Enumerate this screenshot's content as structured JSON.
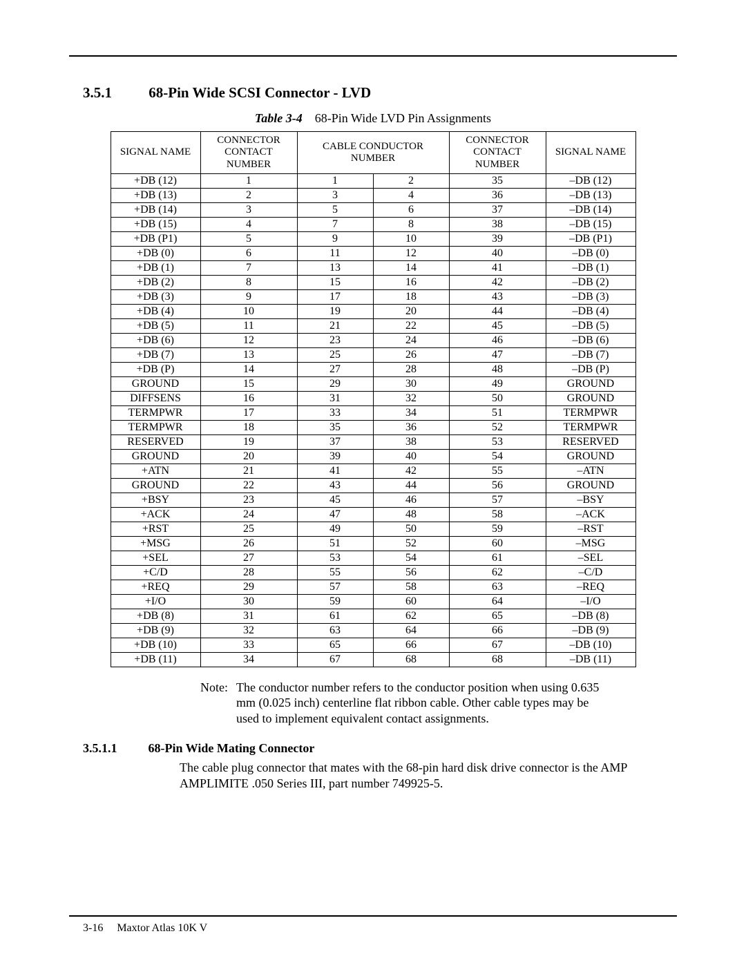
{
  "section": {
    "number": "3.5.1",
    "title": "68‑Pin Wide SCSI Connector ‑ LVD"
  },
  "table": {
    "label": "Table 3‑4",
    "caption": "68‑Pin Wide LVD Pin Assignments",
    "columns": [
      "SIGNAL NAME",
      "CONNECTOR CONTACT NUMBER",
      "CABLE CONDUCTOR NUMBER",
      "CONNECTOR CONTACT NUMBER",
      "SIGNAL NAME"
    ],
    "rows": [
      [
        "+DB (12)",
        "1",
        "1",
        "2",
        "35",
        "–DB (12)"
      ],
      [
        "+DB (13)",
        "2",
        "3",
        "4",
        "36",
        "–DB (13)"
      ],
      [
        "+DB (14)",
        "3",
        "5",
        "6",
        "37",
        "–DB (14)"
      ],
      [
        "+DB (15)",
        "4",
        "7",
        "8",
        "38",
        "–DB (15)"
      ],
      [
        "+DB (P1)",
        "5",
        "9",
        "10",
        "39",
        "–DB (P1)"
      ],
      [
        "+DB (0)",
        "6",
        "11",
        "12",
        "40",
        "–DB (0)"
      ],
      [
        "+DB (1)",
        "7",
        "13",
        "14",
        "41",
        "–DB (1)"
      ],
      [
        "+DB (2)",
        "8",
        "15",
        "16",
        "42",
        "–DB (2)"
      ],
      [
        "+DB (3)",
        "9",
        "17",
        "18",
        "43",
        "–DB (3)"
      ],
      [
        "+DB (4)",
        "10",
        "19",
        "20",
        "44",
        "–DB (4)"
      ],
      [
        "+DB (5)",
        "11",
        "21",
        "22",
        "45",
        "–DB (5)"
      ],
      [
        "+DB (6)",
        "12",
        "23",
        "24",
        "46",
        "–DB (6)"
      ],
      [
        "+DB (7)",
        "13",
        "25",
        "26",
        "47",
        "–DB (7)"
      ],
      [
        "+DB (P)",
        "14",
        "27",
        "28",
        "48",
        "–DB (P)"
      ],
      [
        "GROUND",
        "15",
        "29",
        "30",
        "49",
        "GROUND"
      ],
      [
        "DIFFSENS",
        "16",
        "31",
        "32",
        "50",
        "GROUND"
      ],
      [
        "TERMPWR",
        "17",
        "33",
        "34",
        "51",
        "TERMPWR"
      ],
      [
        "TERMPWR",
        "18",
        "35",
        "36",
        "52",
        "TERMPWR"
      ],
      [
        "RESERVED",
        "19",
        "37",
        "38",
        "53",
        "RESERVED"
      ],
      [
        "GROUND",
        "20",
        "39",
        "40",
        "54",
        "GROUND"
      ],
      [
        "+ATN",
        "21",
        "41",
        "42",
        "55",
        "–ATN"
      ],
      [
        "GROUND",
        "22",
        "43",
        "44",
        "56",
        "GROUND"
      ],
      [
        "+BSY",
        "23",
        "45",
        "46",
        "57",
        "–BSY"
      ],
      [
        "+ACK",
        "24",
        "47",
        "48",
        "58",
        "–ACK"
      ],
      [
        "+RST",
        "25",
        "49",
        "50",
        "59",
        "–RST"
      ],
      [
        "+MSG",
        "26",
        "51",
        "52",
        "60",
        "–MSG"
      ],
      [
        "+SEL",
        "27",
        "53",
        "54",
        "61",
        "–SEL"
      ],
      [
        "+C/D",
        "28",
        "55",
        "56",
        "62",
        "–C/D"
      ],
      [
        "+REQ",
        "29",
        "57",
        "58",
        "63",
        "–REQ"
      ],
      [
        "+I/O",
        "30",
        "59",
        "60",
        "64",
        "–I/O"
      ],
      [
        "+DB (8)",
        "31",
        "61",
        "62",
        "65",
        "–DB (8)"
      ],
      [
        "+DB (9)",
        "32",
        "63",
        "64",
        "66",
        "–DB (9)"
      ],
      [
        "+DB (10)",
        "33",
        "65",
        "66",
        "67",
        "–DB (10)"
      ],
      [
        "+DB (11)",
        "34",
        "67",
        "68",
        "68",
        "–DB (11)"
      ]
    ]
  },
  "note": {
    "label": "Note:",
    "text": "The conductor number refers to the conductor position when using 0.635 mm (0.025 inch) centerline flat ribbon cable. Other cable types may be used to implement equivalent contact assignments."
  },
  "subsection": {
    "number": "3.5.1.1",
    "title": "68‑Pin Wide Mating Connector",
    "body": "The cable plug connector that mates with the 68‑pin hard disk drive connector is the AMP AMPLIMITE .050 Series III, part number 749925‑5."
  },
  "footer": {
    "page": "3‑16",
    "doc": "Maxtor Atlas 10K V"
  }
}
